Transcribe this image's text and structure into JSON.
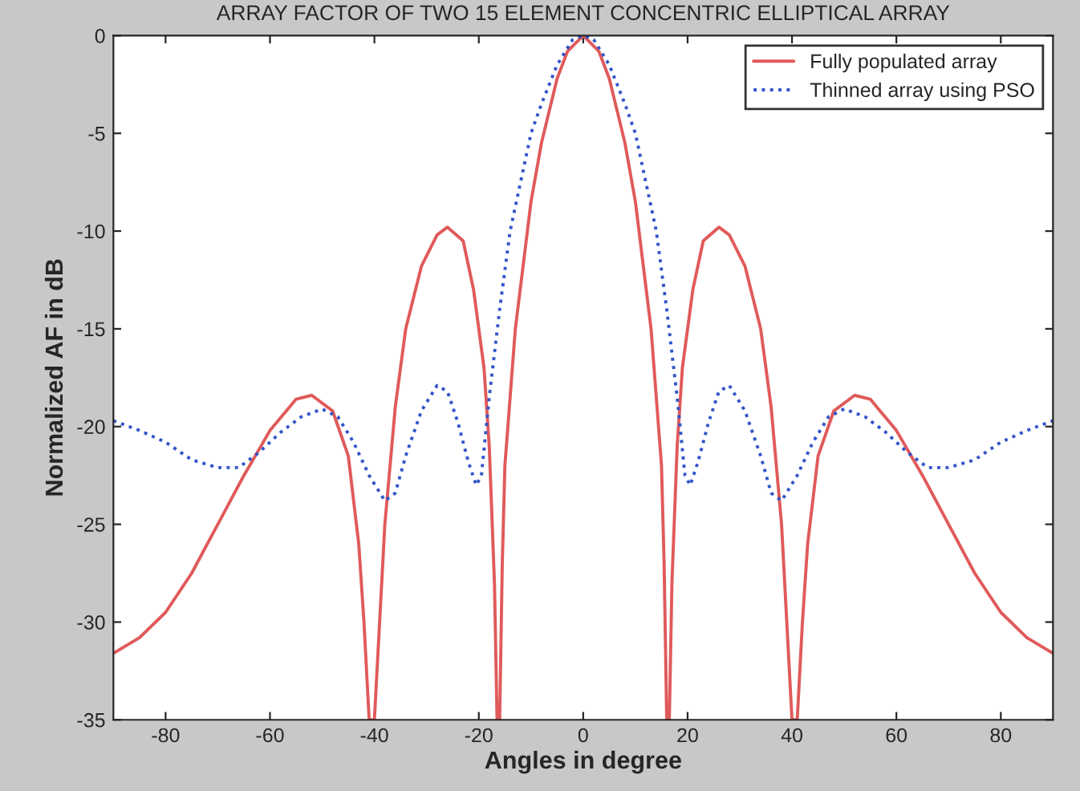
{
  "chart_data": {
    "type": "line",
    "title": "ARRAY FACTOR OF TWO 15 ELEMENT CONCENTRIC ELLIPTICAL ARRAY",
    "xlabel": "Angles in degree",
    "ylabel": "Normalized AF in dB",
    "series": [
      {
        "name": "Fully populated array",
        "color": "#e05a5a",
        "line_style": "solid",
        "x": [
          -90,
          -85,
          -80,
          -75,
          -70,
          -65,
          -60,
          -55,
          -52,
          -48,
          -45,
          -43,
          -42,
          -41,
          -40,
          -39,
          -38,
          -36,
          -34,
          -31,
          -28,
          -26,
          -23,
          -21,
          -19,
          -18,
          -17,
          -16.5,
          -16,
          -15.5,
          -15,
          -13,
          -10,
          -8,
          -5,
          -3,
          0,
          3,
          5,
          8,
          10,
          13,
          15,
          15.5,
          16,
          16.5,
          17,
          18,
          19,
          21,
          23,
          26,
          28,
          31,
          34,
          36,
          38,
          39,
          40,
          41,
          42,
          43,
          45,
          48,
          52,
          55,
          60,
          65,
          70,
          75,
          80,
          85,
          90
        ],
        "values": [
          -31.6,
          -30.8,
          -29.5,
          -27.5,
          -25,
          -22.5,
          -20.2,
          -18.6,
          -18.4,
          -19.2,
          -21.5,
          -26,
          -30,
          -35,
          -35,
          -30,
          -25,
          -19,
          -15,
          -11.8,
          -10.2,
          -9.8,
          -10.5,
          -13,
          -17,
          -21,
          -28,
          -35,
          -35,
          -27,
          -22,
          -15,
          -8.5,
          -5.5,
          -2.2,
          -0.8,
          0,
          -0.8,
          -2.2,
          -5.5,
          -8.5,
          -15,
          -22,
          -27,
          -35,
          -35,
          -28,
          -21,
          -17,
          -13,
          -10.5,
          -9.8,
          -10.2,
          -11.8,
          -15,
          -19,
          -25,
          -30,
          -35,
          -35,
          -30,
          -26,
          -21.5,
          -19.2,
          -18.4,
          -18.6,
          -20.2,
          -22.5,
          -25,
          -27.5,
          -29.5,
          -30.8,
          -31.6
        ]
      },
      {
        "name": "Thinned array using PSO",
        "color": "#3355c8",
        "line_style": "dotted",
        "x": [
          -90,
          -85,
          -80,
          -75,
          -70,
          -66,
          -62,
          -58,
          -54,
          -50,
          -47,
          -44,
          -41,
          -38,
          -36,
          -34,
          -31,
          -28,
          -26,
          -24,
          -22,
          -20.5,
          -19.5,
          -18,
          -16,
          -14,
          -12,
          -10,
          -8,
          -5,
          -2,
          0,
          2,
          5,
          8,
          10,
          12,
          14,
          16,
          18,
          19.5,
          20.5,
          22,
          24,
          26,
          28,
          31,
          34,
          36,
          38,
          41,
          44,
          47,
          50,
          54,
          58,
          62,
          66,
          70,
          75,
          80,
          85,
          90
        ],
        "values": [
          -19.7,
          -20.2,
          -20.8,
          -21.7,
          -22.1,
          -22.1,
          -21.3,
          -20.3,
          -19.5,
          -19.1,
          -19.5,
          -20.8,
          -22.5,
          -23.8,
          -23.4,
          -21.5,
          -19.2,
          -17.9,
          -18.2,
          -19.8,
          -21.8,
          -23,
          -22.5,
          -18.5,
          -14,
          -10,
          -7.5,
          -5,
          -3.5,
          -1.5,
          -0.2,
          0,
          -0.2,
          -1.5,
          -3.5,
          -5,
          -7.5,
          -10,
          -14,
          -18.5,
          -22.5,
          -23,
          -21.8,
          -19.8,
          -18.2,
          -17.9,
          -19.2,
          -21.5,
          -23.4,
          -23.8,
          -22.5,
          -20.8,
          -19.5,
          -19.1,
          -19.5,
          -20.3,
          -21.3,
          -22.1,
          -22.1,
          -21.7,
          -20.8,
          -20.2,
          -19.7
        ]
      }
    ],
    "xlim": [
      -90,
      90
    ],
    "xticks": [
      -80,
      -60,
      -40,
      -20,
      0,
      20,
      40,
      60,
      80
    ],
    "ylim": [
      -35,
      0
    ],
    "yticks": [
      -35,
      -30,
      -25,
      -20,
      -15,
      -10,
      -5,
      0
    ],
    "grid": false,
    "legend": "top right"
  }
}
